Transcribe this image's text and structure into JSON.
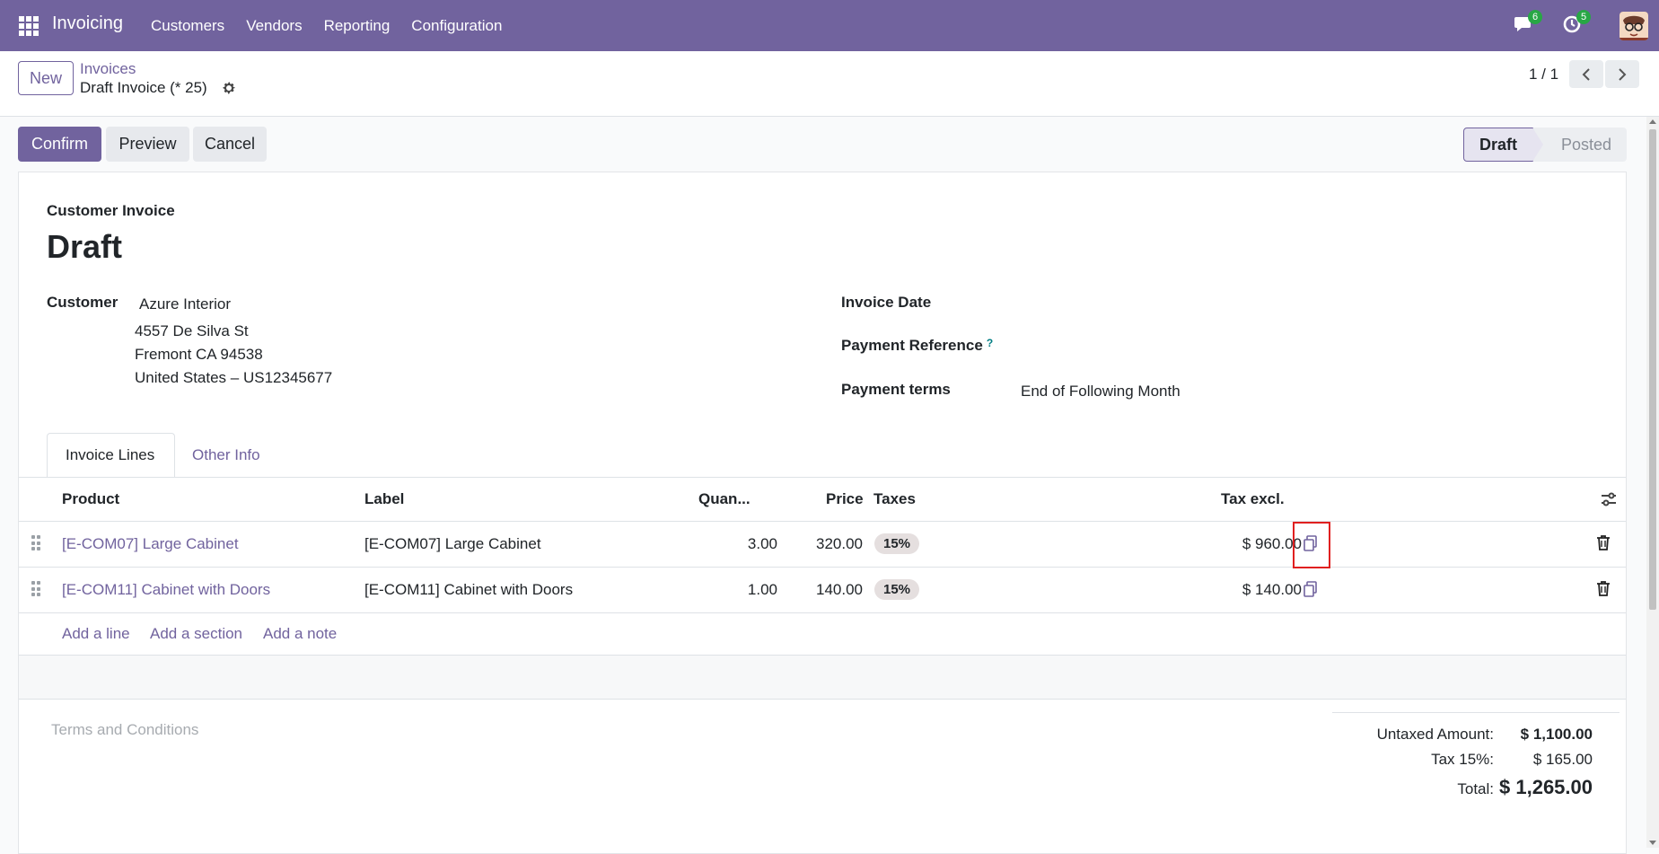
{
  "topbar": {
    "app_name": "Invoicing",
    "menu": [
      "Customers",
      "Vendors",
      "Reporting",
      "Configuration"
    ],
    "messages_count": "6",
    "activities_count": "5",
    "color": "#71639e"
  },
  "control_panel": {
    "new_label": "New",
    "breadcrumb_parent": "Invoices",
    "breadcrumb_current": "Draft Invoice (* 25)",
    "pager": "1 / 1"
  },
  "actions": {
    "confirm": "Confirm",
    "preview": "Preview",
    "cancel": "Cancel"
  },
  "status": {
    "draft": "Draft",
    "posted": "Posted"
  },
  "form": {
    "type_label": "Customer Invoice",
    "title": "Draft",
    "customer_label": "Customer",
    "customer_name": "Azure Interior",
    "address_line1": "4557 De Silva St",
    "address_line2": "Fremont CA 94538",
    "address_line3": "United States – US12345677",
    "invoice_date_label": "Invoice Date",
    "payment_reference_label": "Payment Reference",
    "payment_reference_help": "?",
    "payment_terms_label": "Payment terms",
    "payment_terms_value": "End of Following Month"
  },
  "tabs": [
    "Invoice Lines",
    "Other Info"
  ],
  "lines": {
    "headers": {
      "product": "Product",
      "label": "Label",
      "quantity": "Quan...",
      "price": "Price",
      "taxes": "Taxes",
      "tax_excl": "Tax excl."
    },
    "rows": [
      {
        "product": "[E-COM07] Large Cabinet",
        "label": "[E-COM07] Large Cabinet",
        "quantity": "3.00",
        "price": "320.00",
        "tax": "15%",
        "subtotal": "$ 960.00"
      },
      {
        "product": "[E-COM11] Cabinet with Doors",
        "label": "[E-COM11] Cabinet with Doors",
        "quantity": "1.00",
        "price": "140.00",
        "tax": "15%",
        "subtotal": "$ 140.00"
      }
    ],
    "add_line": "Add a line",
    "add_section": "Add a section",
    "add_note": "Add a note"
  },
  "footer": {
    "terms_placeholder": "Terms and Conditions",
    "untaxed_label": "Untaxed Amount:",
    "untaxed_value": "$ 1,100.00",
    "tax_label": "Tax 15%:",
    "tax_value": "$ 165.00",
    "total_label": "Total:",
    "total_value": "$ 1,265.00"
  }
}
